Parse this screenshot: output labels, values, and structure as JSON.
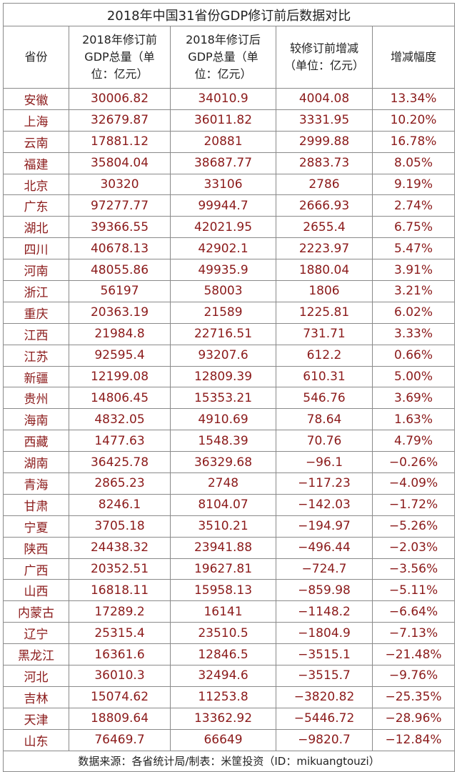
{
  "title": "2018年中国31省份GDP修订前后数据对比",
  "headers": {
    "province": "省份",
    "before": "2018年修订前\nGDP总量（单\n位：亿元）",
    "after": "2018年修订后\nGDP总量（单\n位：亿元）",
    "change": "较修订前增减\n（单位：亿元）",
    "rate": "增减幅度"
  },
  "rows": [
    {
      "province": "安徽",
      "before": "30006.82",
      "after": "34010.9",
      "change": "4004.08",
      "rate": "13.34%"
    },
    {
      "province": "上海",
      "before": "32679.87",
      "after": "36011.82",
      "change": "3331.95",
      "rate": "10.20%"
    },
    {
      "province": "云南",
      "before": "17881.12",
      "after": "20881",
      "change": "2999.88",
      "rate": "16.78%"
    },
    {
      "province": "福建",
      "before": "35804.04",
      "after": "38687.77",
      "change": "2883.73",
      "rate": "8.05%"
    },
    {
      "province": "北京",
      "before": "30320",
      "after": "33106",
      "change": "2786",
      "rate": "9.19%"
    },
    {
      "province": "广东",
      "before": "97277.77",
      "after": "99944.7",
      "change": "2666.93",
      "rate": "2.74%"
    },
    {
      "province": "湖北",
      "before": "39366.55",
      "after": "42021.95",
      "change": "2655.4",
      "rate": "6.75%"
    },
    {
      "province": "四川",
      "before": "40678.13",
      "after": "42902.1",
      "change": "2223.97",
      "rate": "5.47%"
    },
    {
      "province": "河南",
      "before": "48055.86",
      "after": "49935.9",
      "change": "1880.04",
      "rate": "3.91%"
    },
    {
      "province": "浙江",
      "before": "56197",
      "after": "58003",
      "change": "1806",
      "rate": "3.21%"
    },
    {
      "province": "重庆",
      "before": "20363.19",
      "after": "21589",
      "change": "1225.81",
      "rate": "6.02%"
    },
    {
      "province": "江西",
      "before": "21984.8",
      "after": "22716.51",
      "change": "731.71",
      "rate": "3.33%"
    },
    {
      "province": "江苏",
      "before": "92595.4",
      "after": "93207.6",
      "change": "612.2",
      "rate": "0.66%"
    },
    {
      "province": "新疆",
      "before": "12199.08",
      "after": "12809.39",
      "change": "610.31",
      "rate": "5.00%"
    },
    {
      "province": "贵州",
      "before": "14806.45",
      "after": "15353.21",
      "change": "546.76",
      "rate": "3.69%"
    },
    {
      "province": "海南",
      "before": "4832.05",
      "after": "4910.69",
      "change": "78.64",
      "rate": "1.63%"
    },
    {
      "province": "西藏",
      "before": "1477.63",
      "after": "1548.39",
      "change": "70.76",
      "rate": "4.79%"
    },
    {
      "province": "湖南",
      "before": "36425.78",
      "after": "36329.68",
      "change": "−96.1",
      "rate": "−0.26%"
    },
    {
      "province": "青海",
      "before": "2865.23",
      "after": "2748",
      "change": "−117.23",
      "rate": "−4.09%"
    },
    {
      "province": "甘肃",
      "before": "8246.1",
      "after": "8104.07",
      "change": "−142.03",
      "rate": "−1.72%"
    },
    {
      "province": "宁夏",
      "before": "3705.18",
      "after": "3510.21",
      "change": "−194.97",
      "rate": "−5.26%"
    },
    {
      "province": "陕西",
      "before": "24438.32",
      "after": "23941.88",
      "change": "−496.44",
      "rate": "−2.03%"
    },
    {
      "province": "广西",
      "before": "20352.51",
      "after": "19627.81",
      "change": "−724.7",
      "rate": "−3.56%"
    },
    {
      "province": "山西",
      "before": "16818.11",
      "after": "15958.13",
      "change": "−859.98",
      "rate": "−5.11%"
    },
    {
      "province": "内蒙古",
      "before": "17289.2",
      "after": "16141",
      "change": "−1148.2",
      "rate": "−6.64%"
    },
    {
      "province": "辽宁",
      "before": "25315.4",
      "after": "23510.5",
      "change": "−1804.9",
      "rate": "−7.13%"
    },
    {
      "province": "黑龙江",
      "before": "16361.6",
      "after": "12846.5",
      "change": "−3515.1",
      "rate": "−21.48%"
    },
    {
      "province": "河北",
      "before": "36010.3",
      "after": "32494.6",
      "change": "−3515.7",
      "rate": "−9.76%"
    },
    {
      "province": "吉林",
      "before": "15074.62",
      "after": "11253.8",
      "change": "−3820.82",
      "rate": "−25.35%"
    },
    {
      "province": "天津",
      "before": "18809.64",
      "after": "13362.92",
      "change": "−5446.72",
      "rate": "−28.96%"
    },
    {
      "province": "山东",
      "before": "76469.7",
      "after": "66649",
      "change": "−9820.7",
      "rate": "−12.84%"
    }
  ],
  "footer": "数据来源：各省统计局/制表：米筐投资（ID：mikuangtouzi）",
  "colors": {
    "data_text": "#8b1a1a",
    "border": "#8a8a8a"
  }
}
